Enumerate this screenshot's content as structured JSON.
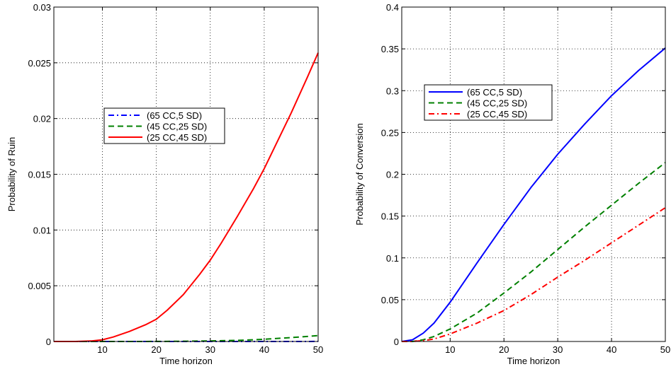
{
  "chart_data": [
    {
      "type": "line",
      "xlabel": "Time horizon",
      "ylabel": "Probability of Ruin",
      "xlim": [
        1,
        50
      ],
      "ylim": [
        0,
        0.03
      ],
      "xticks": [
        10,
        20,
        30,
        40,
        50
      ],
      "xtick_labels": [
        "10",
        "20",
        "30",
        "40",
        "50"
      ],
      "yticks": [
        0,
        0.005,
        0.01,
        0.015,
        0.02,
        0.025,
        0.03
      ],
      "ytick_labels": [
        "0",
        "0.005",
        "0.01",
        "0.015",
        "0.02",
        "0.025",
        "0.03"
      ],
      "grid": true,
      "legend_position": "center-left",
      "x": [
        1,
        5,
        8,
        10,
        12,
        15,
        18,
        20,
        22,
        25,
        28,
        30,
        32,
        35,
        38,
        40,
        42,
        45,
        48,
        50
      ],
      "series": [
        {
          "name": "(65 CC,5 SD)",
          "color": "#0000ff",
          "style": "dash-dot",
          "values": [
            0,
            0,
            0,
            0,
            0,
            0,
            0,
            0,
            0,
            0,
            0,
            0,
            0,
            0,
            0,
            0,
            0,
            0,
            0,
            1e-05
          ]
        },
        {
          "name": "(45 CC,25 SD)",
          "color": "#008000",
          "style": "dashed",
          "values": [
            0,
            0,
            0,
            0,
            0,
            0,
            0,
            1e-05,
            1e-05,
            2e-05,
            4e-05,
            5e-05,
            7e-05,
            0.0001,
            0.00015,
            0.0002,
            0.00026,
            0.00035,
            0.00045,
            0.00053
          ]
        },
        {
          "name": "(25 CC,45 SD)",
          "color": "#ff0000",
          "style": "solid",
          "values": [
            0,
            0,
            5e-05,
            0.00015,
            0.0004,
            0.0009,
            0.0015,
            0.002,
            0.0028,
            0.0042,
            0.006,
            0.0073,
            0.0088,
            0.0112,
            0.0137,
            0.0155,
            0.0175,
            0.0205,
            0.0237,
            0.0259
          ]
        }
      ]
    },
    {
      "type": "line",
      "xlabel": "Time horizon",
      "ylabel": "Probability of Conversion",
      "xlim": [
        1,
        50
      ],
      "ylim": [
        0,
        0.4
      ],
      "xticks": [
        10,
        20,
        30,
        40,
        50
      ],
      "xtick_labels": [
        "10",
        "20",
        "30",
        "40",
        "50"
      ],
      "yticks": [
        0,
        0.05,
        0.1,
        0.15,
        0.2,
        0.25,
        0.3,
        0.35,
        0.4
      ],
      "ytick_labels": [
        "0",
        "0.05",
        "0.1",
        "0.15",
        "0.2",
        "0.25",
        "0.3",
        "0.35",
        "0.4"
      ],
      "grid": true,
      "legend_position": "top-left",
      "x": [
        1,
        3,
        5,
        7,
        10,
        15,
        20,
        25,
        30,
        35,
        40,
        45,
        50
      ],
      "series": [
        {
          "name": "(65 CC,5 SD)",
          "color": "#0000ff",
          "style": "solid",
          "values": [
            0,
            0.002,
            0.01,
            0.022,
            0.047,
            0.094,
            0.14,
            0.184,
            0.224,
            0.26,
            0.294,
            0.324,
            0.351
          ]
        },
        {
          "name": "(45 CC,25 SD)",
          "color": "#008000",
          "style": "dashed",
          "values": [
            0,
            0,
            0.002,
            0.006,
            0.015,
            0.034,
            0.058,
            0.083,
            0.11,
            0.137,
            0.163,
            0.189,
            0.214
          ]
        },
        {
          "name": "(25 CC,45 SD)",
          "color": "#ff0000",
          "style": "dash-dot",
          "values": [
            0,
            0,
            0.001,
            0.003,
            0.009,
            0.022,
            0.037,
            0.056,
            0.077,
            0.097,
            0.118,
            0.139,
            0.16
          ]
        }
      ]
    }
  ]
}
